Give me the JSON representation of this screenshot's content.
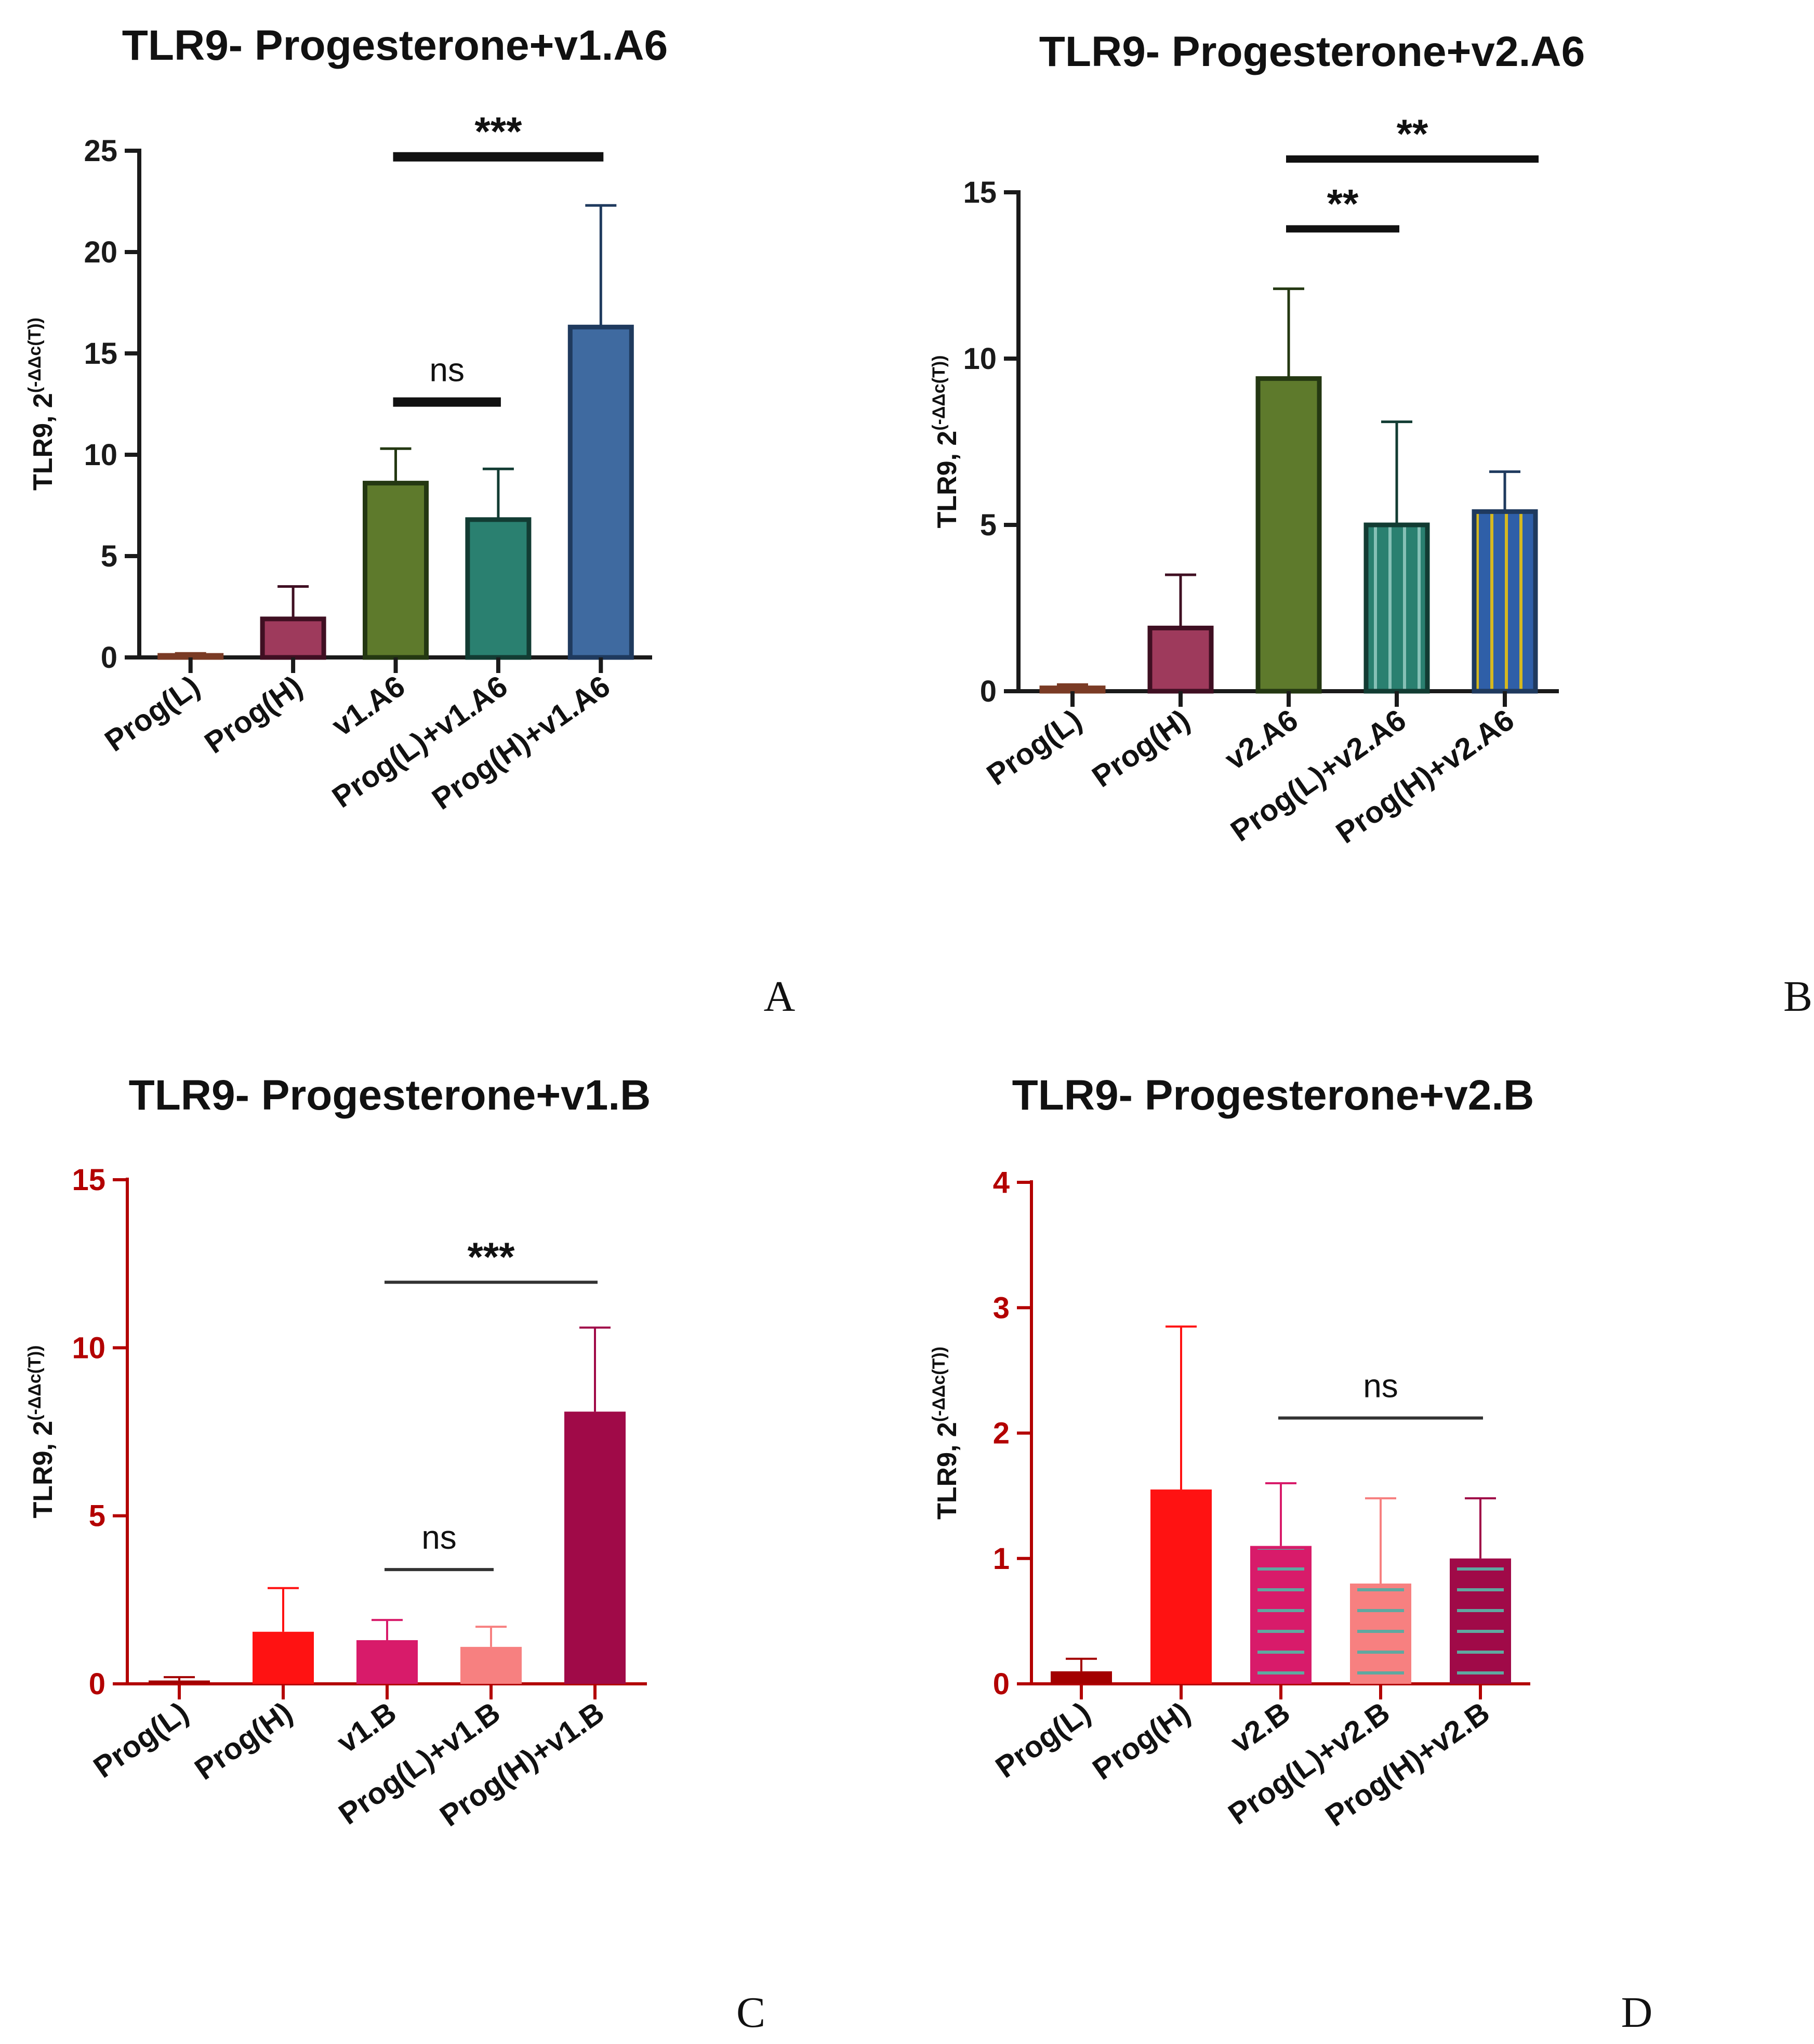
{
  "colors": {
    "A_axis": "#1a1a1a",
    "B_axis": "#1a1a1a",
    "C_axis": "#b30000",
    "D_axis": "#b30000",
    "stripe_teal": "#5fa8a0",
    "stripe_yellow": "#d4b820"
  },
  "chart_data": [
    {
      "id": "A",
      "panel_letter": "A",
      "type": "bar",
      "title": "TLR9- Progesterone+v1.A6",
      "ylabel": "TLR9, 2(-ΔΔc(T))",
      "ylabel_main": "TLR9, 2",
      "ylabel_sup": "(-ΔΔc(T))",
      "xlabel": "",
      "ylim": [
        0,
        25
      ],
      "yticks": [
        0,
        5,
        10,
        15,
        20,
        25
      ],
      "ytick_labels": [
        "0",
        "5",
        "10",
        "15",
        "20",
        "25"
      ],
      "categories": [
        "Prog(L)",
        "Prog(H)",
        "v1.A6",
        "Prog(L)+v1.A6",
        "Prog(H)+v1.A6"
      ],
      "values": [
        0.1,
        1.9,
        8.6,
        6.8,
        16.3
      ],
      "errors": [
        0.1,
        1.6,
        1.7,
        2.5,
        6.0
      ],
      "bar_colors": [
        "#d98a6e",
        "#9e3a5c",
        "#5e7a2c",
        "#2a8070",
        "#3f6aa0"
      ],
      "edge_colors": [
        "#7a3b25",
        "#3f0f22",
        "#243812",
        "#123c33",
        "#1f3a5e"
      ],
      "patterns": [
        "none",
        "none",
        "none",
        "none",
        "none"
      ],
      "significance": [
        {
          "from": 2,
          "to": 4,
          "value": 24.7,
          "label": "***"
        },
        {
          "from": 2,
          "to": 3,
          "value": 12.6,
          "label": "ns"
        }
      ]
    },
    {
      "id": "B",
      "panel_letter": "B",
      "type": "bar",
      "title": "TLR9- Progesterone+v2.A6",
      "ylabel": "TLR9, 2(-ΔΔc(T))",
      "ylabel_main": "TLR9, 2",
      "ylabel_sup": "(-ΔΔc(T))",
      "xlabel": "",
      "ylim": [
        0,
        15
      ],
      "yticks": [
        0,
        5,
        10,
        15
      ],
      "ytick_labels": [
        "0",
        "5",
        "10",
        "15"
      ],
      "categories": [
        "Prog(L)",
        "Prog(H)",
        "v2.A6",
        "Prog(L)+v2.A6",
        "Prog(H)+v2.A6"
      ],
      "values": [
        0.1,
        1.9,
        9.4,
        5.0,
        5.4
      ],
      "errors": [
        0.1,
        1.6,
        2.7,
        3.1,
        1.2
      ],
      "bar_colors": [
        "#d98a6e",
        "#9e3a5c",
        "#5e7a2c",
        "#2a8070",
        "#2f5fa8"
      ],
      "edge_colors": [
        "#7a3b25",
        "#3f0f22",
        "#243812",
        "#123c33",
        "#1f3a5e"
      ],
      "patterns": [
        "none",
        "none",
        "none",
        "vstripe-teal",
        "vstripe-yellow"
      ],
      "significance": [
        {
          "from": 2,
          "to": 4,
          "value": 16.0,
          "label": "**"
        },
        {
          "from": 2,
          "to": 3,
          "value": 13.9,
          "label": "**"
        }
      ]
    },
    {
      "id": "C",
      "panel_letter": "C",
      "type": "bar",
      "title": "TLR9- Progesterone+v1.B",
      "ylabel": "TLR9, 2(-ΔΔc(T))",
      "ylabel_main": "TLR9, 2",
      "ylabel_sup": "(-ΔΔc(T))",
      "xlabel": "",
      "ylim": [
        0,
        15
      ],
      "yticks": [
        0,
        5,
        10,
        15
      ],
      "ytick_labels": [
        "0",
        "5",
        "10",
        "15"
      ],
      "categories": [
        "Prog(L)",
        "Prog(H)",
        "v1.B",
        "Prog(L)+v1.B",
        "Prog(H)+v1.B"
      ],
      "values": [
        0.1,
        1.55,
        1.3,
        1.1,
        8.1
      ],
      "errors": [
        0.1,
        1.3,
        0.6,
        0.6,
        2.5
      ],
      "bar_colors": [
        "#a30000",
        "#ff1212",
        "#d81b6a",
        "#f78080",
        "#a00a48"
      ],
      "edge_colors": [
        "#a30000",
        "#ff1212",
        "#d81b6a",
        "#f78080",
        "#a00a48"
      ],
      "patterns": [
        "none",
        "none",
        "none",
        "none",
        "none"
      ],
      "significance": [
        {
          "from": 2,
          "to": 4,
          "value": 11.95,
          "label": "***"
        },
        {
          "from": 2,
          "to": 3,
          "value": 3.4,
          "label": "ns"
        }
      ]
    },
    {
      "id": "D",
      "panel_letter": "D",
      "type": "bar",
      "title": "TLR9- Progesterone+v2.B",
      "ylabel": "TLR9, 2(-ΔΔc(T))",
      "ylabel_main": "TLR9, 2",
      "ylabel_sup": "(-ΔΔc(T))",
      "xlabel": "",
      "ylim": [
        0,
        4
      ],
      "yticks": [
        0,
        1,
        2,
        3,
        4
      ],
      "ytick_labels": [
        "0",
        "1",
        "2",
        "3",
        "4"
      ],
      "categories": [
        "Prog(L)",
        "Prog(H)",
        "v2.B",
        "Prog(L)+v2.B",
        "Prog(H)+v2.B"
      ],
      "values": [
        0.1,
        1.55,
        1.1,
        0.8,
        1.0
      ],
      "errors": [
        0.1,
        1.3,
        0.5,
        0.68,
        0.48
      ],
      "bar_colors": [
        "#a30000",
        "#ff1212",
        "#d81b6a",
        "#f78080",
        "#a00a48"
      ],
      "edge_colors": [
        "#a30000",
        "#ff1212",
        "#d81b6a",
        "#f78080",
        "#a00a48"
      ],
      "patterns": [
        "none",
        "none",
        "hstripe-teal",
        "hstripe-teal",
        "hstripe-teal"
      ],
      "significance": [
        {
          "from": 2,
          "to": 4,
          "value": 2.12,
          "label": "ns"
        }
      ]
    }
  ]
}
